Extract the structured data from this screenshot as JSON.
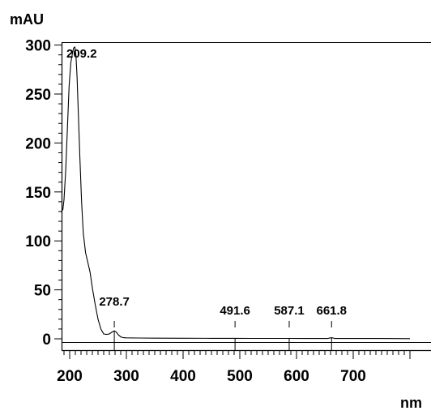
{
  "chart_data": {
    "type": "line",
    "title": "",
    "ylabel": "mAU",
    "xlabel": "nm",
    "xlim": [
      185,
      800
    ],
    "ylim": [
      -3,
      300
    ],
    "x_ticks": [
      200,
      300,
      400,
      500,
      600,
      700
    ],
    "y_ticks": [
      0,
      50,
      100,
      150,
      200,
      250,
      300
    ],
    "grid": false,
    "series": [
      {
        "x": [
          185,
          188,
          190,
          193,
          196,
          199,
          202,
          205,
          207,
          209.2,
          211,
          213,
          215,
          218,
          221,
          224,
          228,
          232,
          236,
          240,
          245,
          250,
          255,
          260,
          265,
          270,
          275,
          278.7,
          282,
          286,
          290,
          295,
          300,
          320,
          350,
          400,
          450,
          491.6,
          520,
          560,
          587.1,
          620,
          655,
          661.8,
          668,
          700,
          750,
          800
        ],
        "y": [
          130,
          132,
          142,
          172,
          215,
          258,
          282,
          292,
          297,
          298,
          290,
          268,
          235,
          185,
          140,
          108,
          88,
          78,
          68,
          52,
          35,
          20,
          10,
          5,
          4.5,
          5,
          7,
          8,
          7,
          4,
          2,
          1.2,
          1,
          0.8,
          0.7,
          0.6,
          0.5,
          0.5,
          0.4,
          0.4,
          0.4,
          0.3,
          0.3,
          1.2,
          0.3,
          0.3,
          0.3,
          0.2
        ]
      }
    ],
    "annotations": [
      {
        "label": "209.2",
        "x": 209.2,
        "y": 298
      },
      {
        "label": "278.7",
        "x": 278.7,
        "y": 8
      },
      {
        "label": "491.6",
        "x": 491.6,
        "y": 0.5
      },
      {
        "label": "587.1",
        "x": 587.1,
        "y": 0.4
      },
      {
        "label": "661.8",
        "x": 661.8,
        "y": 1.2
      }
    ]
  }
}
